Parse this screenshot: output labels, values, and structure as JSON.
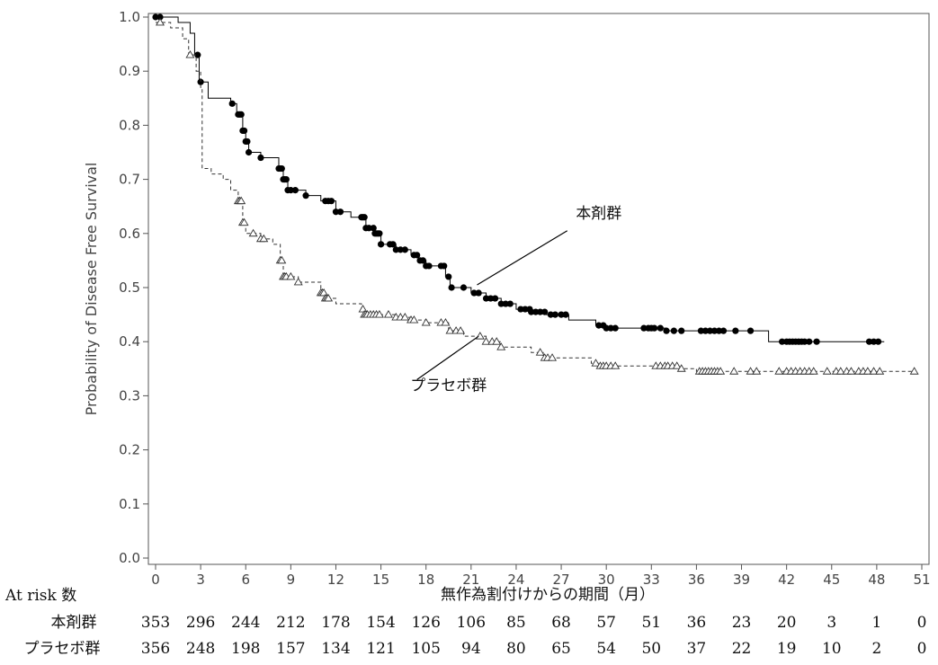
{
  "chart_data": {
    "type": "line",
    "ylabel": "Probability of Disease Free Survival",
    "xlabel": "無作為割付けからの期間（月）",
    "xlim": [
      0,
      51
    ],
    "ylim": [
      0,
      1.0
    ],
    "x_ticks": [
      0,
      3,
      6,
      9,
      12,
      15,
      18,
      21,
      24,
      27,
      30,
      33,
      36,
      39,
      42,
      45,
      48,
      51
    ],
    "y_ticks": [
      "0.0",
      "0.1",
      "0.2",
      "0.3",
      "0.4",
      "0.5",
      "0.6",
      "0.7",
      "0.8",
      "0.9",
      "1.0"
    ],
    "series": [
      {
        "name": "本剤群",
        "line_style": "solid",
        "marker": "filled-circle",
        "color": "#000000",
        "points": [
          [
            0,
            1.0
          ],
          [
            1.5,
            0.99
          ],
          [
            2.3,
            0.97
          ],
          [
            2.6,
            0.93
          ],
          [
            2.9,
            0.88
          ],
          [
            3.5,
            0.85
          ],
          [
            5,
            0.84
          ],
          [
            5.4,
            0.82
          ],
          [
            5.8,
            0.79
          ],
          [
            6,
            0.77
          ],
          [
            6.2,
            0.75
          ],
          [
            7,
            0.74
          ],
          [
            8.2,
            0.72
          ],
          [
            8.5,
            0.7
          ],
          [
            8.8,
            0.68
          ],
          [
            10,
            0.67
          ],
          [
            11,
            0.66
          ],
          [
            12,
            0.64
          ],
          [
            13,
            0.63
          ],
          [
            14,
            0.61
          ],
          [
            14.6,
            0.6
          ],
          [
            15,
            0.58
          ],
          [
            16,
            0.57
          ],
          [
            17,
            0.56
          ],
          [
            17.5,
            0.55
          ],
          [
            18,
            0.54
          ],
          [
            19.3,
            0.52
          ],
          [
            19.6,
            0.5
          ],
          [
            21,
            0.49
          ],
          [
            22,
            0.48
          ],
          [
            23,
            0.47
          ],
          [
            24,
            0.46
          ],
          [
            25,
            0.455
          ],
          [
            26,
            0.45
          ],
          [
            27.5,
            0.44
          ],
          [
            29.3,
            0.43
          ],
          [
            30,
            0.425
          ],
          [
            32,
            0.425
          ],
          [
            34,
            0.42
          ],
          [
            38,
            0.42
          ],
          [
            40.8,
            0.4
          ],
          [
            48.5,
            0.4
          ]
        ],
        "markers_x": [
          0,
          0.3,
          2.8,
          3,
          5.1,
          5.5,
          5.6,
          5.7,
          5.8,
          5.9,
          6,
          6.1,
          6.2,
          7,
          8.2,
          8.3,
          8.4,
          8.5,
          8.6,
          8.7,
          8.8,
          9,
          9.3,
          10,
          11.3,
          11.5,
          11.7,
          12,
          12.3,
          13.7,
          13.8,
          13.9,
          14,
          14.2,
          14.5,
          14.6,
          14.7,
          14.8,
          14.9,
          15,
          15.6,
          15.8,
          16,
          16.3,
          16.6,
          17.2,
          17.4,
          17.6,
          17.8,
          18,
          18.2,
          19,
          19.2,
          19.5,
          19.7,
          20.5,
          21.2,
          21.5,
          22,
          22.3,
          22.6,
          23,
          23.3,
          23.6,
          24.3,
          24.6,
          24.9,
          25,
          25.3,
          25.6,
          25.9,
          26.3,
          26.6,
          27,
          27.3,
          29.5,
          29.8,
          30,
          30.3,
          30.6,
          32.5,
          32.8,
          33,
          33.2,
          33.6,
          34,
          34.5,
          35,
          36.3,
          36.6,
          36.9,
          37.2,
          37.5,
          37.8,
          38.6,
          39.6,
          41.7,
          42,
          42.2,
          42.4,
          42.6,
          42.8,
          43,
          43.2,
          43.5,
          44,
          47.5,
          47.8,
          48.1
        ]
      },
      {
        "name": "プラセボ群",
        "line_style": "dashed",
        "marker": "open-triangle",
        "color": "#333333",
        "points": [
          [
            0,
            0.99
          ],
          [
            1,
            0.98
          ],
          [
            1.8,
            0.96
          ],
          [
            2.2,
            0.93
          ],
          [
            2.7,
            0.9
          ],
          [
            3,
            0.87
          ],
          [
            3.1,
            0.72
          ],
          [
            3.7,
            0.71
          ],
          [
            4.5,
            0.7
          ],
          [
            5,
            0.68
          ],
          [
            5.5,
            0.66
          ],
          [
            5.8,
            0.62
          ],
          [
            6,
            0.6
          ],
          [
            7,
            0.59
          ],
          [
            7.8,
            0.58
          ],
          [
            8.3,
            0.55
          ],
          [
            8.5,
            0.52
          ],
          [
            9.5,
            0.51
          ],
          [
            11,
            0.49
          ],
          [
            11.3,
            0.48
          ],
          [
            12,
            0.47
          ],
          [
            13.7,
            0.46
          ],
          [
            13.9,
            0.45
          ],
          [
            16,
            0.445
          ],
          [
            17,
            0.44
          ],
          [
            18,
            0.435
          ],
          [
            19.5,
            0.42
          ],
          [
            20.5,
            0.41
          ],
          [
            22,
            0.4
          ],
          [
            23,
            0.39
          ],
          [
            25,
            0.38
          ],
          [
            25.8,
            0.37
          ],
          [
            29,
            0.36
          ],
          [
            29.5,
            0.355
          ],
          [
            33,
            0.355
          ],
          [
            35,
            0.35
          ],
          [
            36,
            0.345
          ],
          [
            50.5,
            0.345
          ]
        ],
        "markers_x": [
          0.3,
          2.3,
          5.5,
          5.6,
          5.7,
          5.8,
          5.9,
          6.5,
          7,
          7.2,
          8.3,
          8.4,
          8.5,
          8.6,
          8.7,
          9,
          9.5,
          11,
          11.1,
          11.2,
          11.3,
          11.4,
          11.5,
          13.8,
          13.9,
          14,
          14.1,
          14.3,
          14.5,
          14.7,
          14.9,
          15.5,
          16,
          16.3,
          16.6,
          17,
          17.2,
          18,
          19,
          19.3,
          19.6,
          20,
          20.3,
          21.6,
          22,
          22.4,
          22.7,
          23,
          25.6,
          25.9,
          26.1,
          26.4,
          29.3,
          29.6,
          29.8,
          30,
          30.3,
          30.6,
          33.3,
          33.6,
          33.9,
          34.1,
          34.4,
          34.7,
          35,
          36.2,
          36.4,
          36.6,
          36.8,
          37,
          37.2,
          37.4,
          37.6,
          38.5,
          39.6,
          40,
          41.5,
          42,
          42.3,
          42.6,
          42.9,
          43.2,
          43.5,
          43.8,
          44.7,
          45.3,
          45.6,
          46,
          46.3,
          46.8,
          47.1,
          47.4,
          47.8,
          48.2,
          50.5
        ]
      }
    ],
    "annotations": [
      {
        "text": "本剤群",
        "label_x": 29.5,
        "label_y": 0.628,
        "line_from": [
          21.4,
          0.505
        ],
        "line_to": [
          27.4,
          0.605
        ]
      },
      {
        "text": "プラセボ群",
        "label_x": 19.5,
        "label_y": 0.31,
        "line_from": [
          21.5,
          0.41
        ],
        "line_to": [
          17.4,
          0.33
        ]
      }
    ],
    "at_risk": {
      "header": "At risk 数",
      "times": [
        0,
        3,
        6,
        9,
        12,
        15,
        18,
        21,
        24,
        27,
        30,
        33,
        36,
        39,
        42,
        45,
        48,
        51
      ],
      "rows": [
        {
          "label": "本剤群",
          "values": [
            "353",
            "296",
            "244",
            "212",
            "178",
            "154",
            "126",
            "106",
            "85",
            "68",
            "57",
            "51",
            "36",
            "23",
            "20",
            "3",
            "1",
            "0"
          ]
        },
        {
          "label": "プラセボ群",
          "values": [
            "356",
            "248",
            "198",
            "157",
            "134",
            "121",
            "105",
            "94",
            "80",
            "65",
            "54",
            "50",
            "37",
            "22",
            "19",
            "10",
            "2",
            "0"
          ]
        }
      ]
    }
  }
}
